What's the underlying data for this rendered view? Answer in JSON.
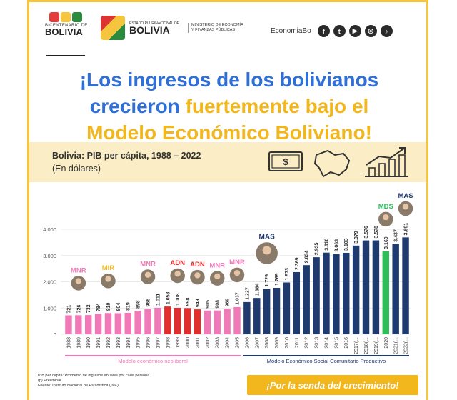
{
  "header": {
    "bicentenario_line1": "BICENTENARIO DE",
    "bicentenario_line2": "BOLIVIA",
    "estado_line1": "ESTADO PLURINACIONAL DE",
    "estado_line2": "BOLIVIA",
    "ministerio": "MINISTERIO DE ECONOMÍA Y FINANZAS PÚBLICAS",
    "social_handle": "EconomiaBo",
    "social_icons": [
      "facebook-icon",
      "twitter-icon",
      "youtube-icon",
      "instagram-icon",
      "tiktok-icon"
    ]
  },
  "headline": {
    "part1": "¡Los ingresos de los bolivianos",
    "part2": "crecieron",
    "part3": "fuertemente bajo el",
    "part4": "Modelo Económico Boliviano!"
  },
  "subtitle": "Bolivia: PIB per cápita, 1988 – 2022",
  "subunit": "(En dólares)",
  "colors": {
    "pink": "#f07ab8",
    "red": "#e02d2d",
    "navy": "#1e3a6e",
    "green": "#2ebd5a",
    "blue": "#2f6fd8",
    "gold": "#f2b71c"
  },
  "chart_data": {
    "type": "bar",
    "categories": [
      "1988",
      "1989",
      "1990",
      "1991",
      "1992",
      "1993",
      "1994",
      "1995",
      "1996",
      "1997",
      "1998",
      "1999",
      "2000",
      "2001",
      "2002",
      "2003",
      "2004",
      "2005",
      "2006",
      "2007",
      "2008",
      "2009",
      "2010",
      "2011",
      "2012",
      "2013",
      "2014",
      "2015",
      "2016",
      "2017(...",
      "2018(...",
      "2019(...",
      "2020",
      "2021(...",
      "2022(..."
    ],
    "values": [
      721,
      726,
      732,
      784,
      810,
      804,
      819,
      898,
      966,
      1011,
      1058,
      1008,
      998,
      949,
      905,
      908,
      969,
      1037,
      1227,
      1384,
      1729,
      1769,
      1973,
      2369,
      2634,
      2935,
      3110,
      3063,
      3103,
      3379,
      3576,
      3578,
      3160,
      3437,
      3691
    ],
    "value_labels": [
      "721",
      "726",
      "732",
      "784",
      "810",
      "804",
      "819",
      "898",
      "966",
      "1.011",
      "1.058",
      "1.008",
      "998",
      "949",
      "905",
      "908",
      "969",
      "1.037",
      "1.227",
      "1.384",
      "1.729",
      "1.769",
      "1.973",
      "2.369",
      "2.634",
      "2.935",
      "3.110",
      "3.063",
      "3.103",
      "3.379",
      "3.576",
      "3.578",
      "3.160",
      "3.437",
      "3.691"
    ],
    "bar_colors": [
      "pink",
      "pink",
      "pink",
      "pink",
      "pink",
      "pink",
      "pink",
      "pink",
      "pink",
      "pink",
      "red",
      "red",
      "red",
      "red",
      "pink",
      "pink",
      "pink",
      "pink",
      "navy",
      "navy",
      "navy",
      "navy",
      "navy",
      "navy",
      "navy",
      "navy",
      "navy",
      "navy",
      "navy",
      "navy",
      "navy",
      "navy",
      "green",
      "navy",
      "navy"
    ],
    "y_ticks": [
      "0",
      "1.000",
      "2.000",
      "3.000",
      "4.000"
    ],
    "ylim": [
      0,
      4000
    ],
    "grid": true,
    "party_labels": [
      {
        "name": "MNR",
        "index": 1,
        "color": "pink"
      },
      {
        "name": "MIR",
        "index": 4,
        "color": "gold"
      },
      {
        "name": "MNR",
        "index": 8,
        "color": "pink"
      },
      {
        "name": "ADN",
        "index": 11,
        "color": "red"
      },
      {
        "name": "ADN",
        "index": 13,
        "color": "red"
      },
      {
        "name": "MNR",
        "index": 15,
        "color": "pink"
      },
      {
        "name": "MNR",
        "index": 17,
        "color": "pink"
      },
      {
        "name": "MAS",
        "index": 20,
        "color": "navy"
      },
      {
        "name": "MDS",
        "index": 32,
        "color": "green"
      },
      {
        "name": "MAS",
        "index": 34,
        "color": "navy"
      }
    ],
    "period_labels": [
      {
        "text": "Modelo económico neoliberal",
        "start": 0,
        "end": 17,
        "color": "pink"
      },
      {
        "text": "Modelo Económico Social Comunitario Productivo",
        "start": 18,
        "end": 34,
        "color": "navy"
      }
    ]
  },
  "footnotes": {
    "line1": "PIB per cápita: Promedio de ingresos anuales por cada persona.",
    "line2": "(p) Preliminar",
    "line3": "Fuente: Instituto Nacional de Estadística (INE)"
  },
  "slogan": "¡Por la senda del crecimiento!"
}
